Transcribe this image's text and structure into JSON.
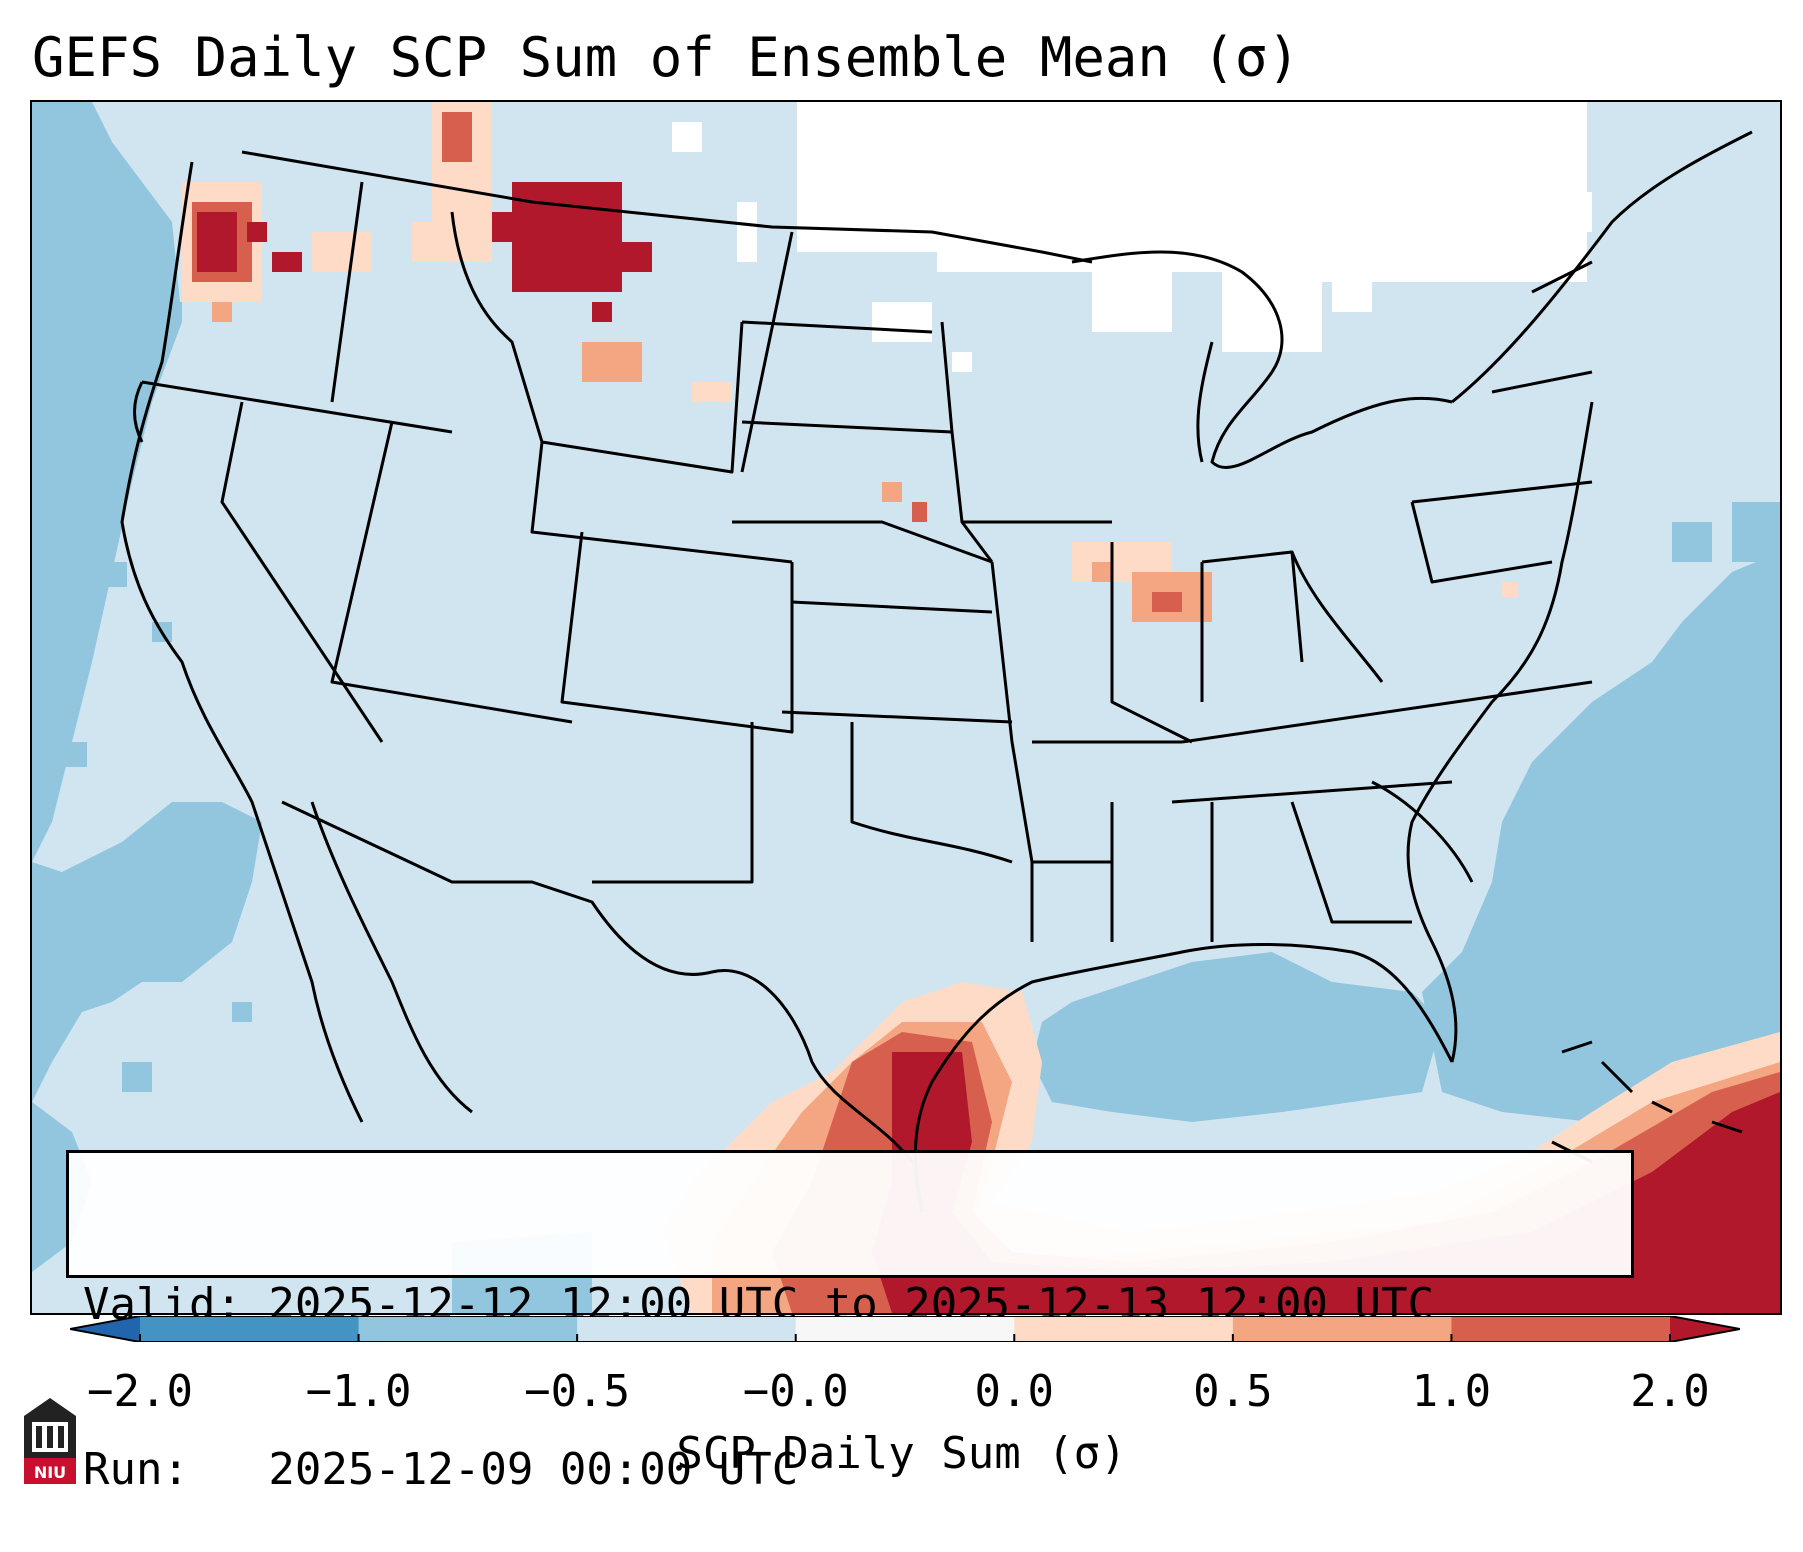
{
  "title": "GEFS Daily SCP Sum of Ensemble Mean (σ)",
  "valid_line": "Valid: 2025-12-12 12:00 UTC to 2025-12-13 12:00 UTC",
  "run_line": "Run:   2025-12-09 00:00 UTC",
  "logo_text": "NIU",
  "colors": {
    "ocean_strong": "#92c5de",
    "land_neutral": "#d1e5f0",
    "white": "#ffffff",
    "light_pos": "#fddbc7",
    "mid_pos": "#f4a582",
    "strong_pos": "#d6604d",
    "extreme_pos": "#b2182b",
    "neg_extreme": "#4393c3"
  },
  "chart_data": {
    "type": "heatmap",
    "title": "GEFS Daily SCP Sum of Ensemble Mean (σ)",
    "colorbar": {
      "label": "SCP Daily Sum (σ)",
      "ticks": [
        "−2.0",
        "−1.0",
        "−0.5",
        "−0.0",
        "0.0",
        "0.5",
        "1.0",
        "2.0"
      ],
      "bins": [
        {
          "from": -2.0,
          "to": -1.0,
          "color": "#4393c3"
        },
        {
          "from": -1.0,
          "to": -0.5,
          "color": "#92c5de"
        },
        {
          "from": -0.5,
          "to": -0.0,
          "color": "#d1e5f0"
        },
        {
          "from": -0.0,
          "to": 0.0,
          "color": "#f7f7f7"
        },
        {
          "from": 0.0,
          "to": 0.5,
          "color": "#fddbc7"
        },
        {
          "from": 0.5,
          "to": 1.0,
          "color": "#f4a582"
        },
        {
          "from": 1.0,
          "to": 2.0,
          "color": "#d6604d"
        }
      ],
      "extend": "both",
      "under_color": "#2166ac",
      "over_color": "#b2182b"
    },
    "highlights": [
      {
        "region": "western Washington",
        "level": "extreme"
      },
      {
        "region": "north-central Montana",
        "level": "extreme"
      },
      {
        "region": "southeast Texas / western Gulf",
        "level": "extreme"
      },
      {
        "region": "northern Mexico / Gulf coast",
        "level": "strong"
      },
      {
        "region": "Cuba / Bahamas",
        "level": "strong"
      },
      {
        "region": "Illinois / Indiana",
        "level": "moderate"
      },
      {
        "region": "Atlantic & Pacific oceans",
        "level": "negative"
      }
    ]
  }
}
